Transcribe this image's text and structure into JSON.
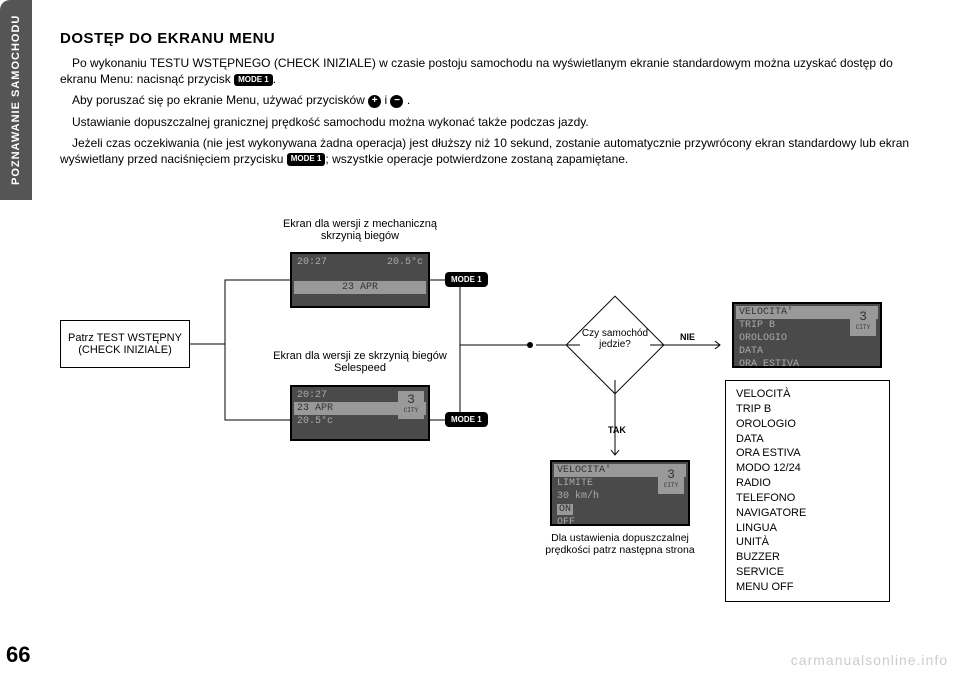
{
  "sidebar": {
    "label": "POZNAWANIE SAMOCHODU"
  },
  "page_number": "66",
  "title": "DOSTĘP DO EKRANU MENU",
  "para1a": "Po wykonaniu TESTU WSTĘPNEGO (CHECK INIZIALE) w czasie postoju samochodu na wyświetlanym ekranie standardowym można uzyskać dostęp do ekranu Menu: nacisnąć przycisk ",
  "para1b": ".",
  "para2a": "Aby poruszać się po ekranie Menu, używać przycisków ",
  "para2b": " i ",
  "para2c": " .",
  "para3": "Ustawianie dopuszczalnej granicznej prędkość samochodu można wykonać także podczas jazdy.",
  "para4a": "Jeżeli czas oczekiwania (nie jest wykonywana żadna operacja) jest dłuższy niż 10 sekund, zostanie automatycznie przywrócony ekran standardowy lub ekran wyświetlany przed naciśnięciem przycisku ",
  "para4b": "; wszystkie operacje potwierdzone zostaną zapamiętane.",
  "btn_mode": "MODE 1",
  "plus": "+",
  "minus": "−",
  "diagram": {
    "start_box": "Patrz TEST WSTĘPNY (CHECK INIZIALE)",
    "label_mech": "Ekran dla wersji z mechaniczną skrzynią biegów",
    "label_sele": "Ekran dla wersji ze skrzynią biegów Selespeed",
    "lcd_time": "20:27",
    "lcd_temp": "20.5°c",
    "lcd_date": "23 APR",
    "gear_num": "3",
    "gear_mode": "CITY",
    "diamond": "Czy samochód jedzie?",
    "yes": "TAK",
    "no": "NIE",
    "limit_title": "VELOCITA' LIMITE",
    "limit_speed": "30 km/h",
    "limit_on": "ON",
    "limit_off": "OFF",
    "caption_limit": "Dla ustawienia dopuszczalnej prędkości patrz następna strona",
    "menu_lcd": [
      "VELOCITA'",
      "TRIP B",
      "OROLOGIO",
      "DATA",
      "ORA ESTIVA"
    ],
    "menu_full": [
      "VELOCITÀ",
      "TRIP B",
      "OROLOGIO",
      "DATA",
      "ORA ESTIVA",
      "MODO 12/24",
      "RADIO",
      "TELEFONO",
      "NAVIGATORE",
      "LINGUA",
      "UNITÀ",
      "BUZZER",
      "SERVICE",
      "MENU OFF"
    ]
  },
  "watermark": "carmanualsonline.info"
}
